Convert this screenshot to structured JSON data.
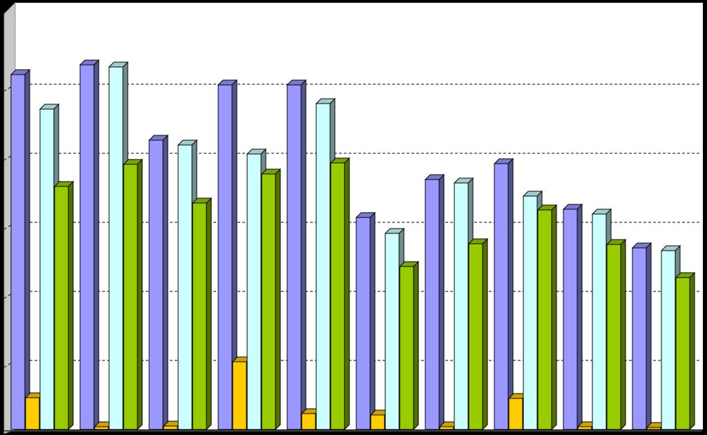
{
  "chart_data": {
    "type": "bar",
    "title": "",
    "xlabel": "",
    "ylabel": "",
    "ylim": [
      0,
      5.16
    ],
    "grid": true,
    "legend": "none",
    "categories": [
      "",
      "",
      "",
      "",
      "",
      "",
      "",
      "",
      "",
      ""
    ],
    "series": [
      {
        "color": "#9999FF",
        "values": [
          5.14,
          5.28,
          4.19,
          4.99,
          4.99,
          3.07,
          3.62,
          3.85,
          3.19,
          2.63
        ]
      },
      {
        "color": "#FFCC00",
        "values": [
          0.46,
          0.04,
          0.05,
          0.98,
          0.23,
          0.21,
          0.04,
          0.45,
          0.04,
          0.03
        ]
      },
      {
        "color": "#CCFFFF",
        "values": [
          4.64,
          5.25,
          4.12,
          3.99,
          4.72,
          2.84,
          3.57,
          3.38,
          3.12,
          2.59
        ]
      },
      {
        "color": "#99CC00",
        "values": [
          3.52,
          3.84,
          3.28,
          3.7,
          3.86,
          2.36,
          2.69,
          3.18,
          2.68,
          2.2
        ]
      }
    ]
  }
}
